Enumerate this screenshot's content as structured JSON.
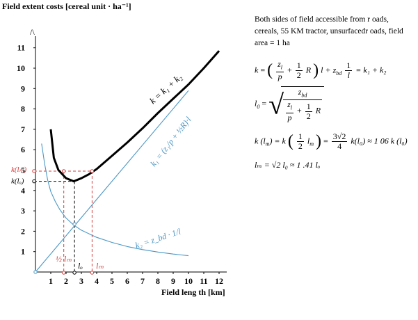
{
  "chart_data": {
    "type": "line",
    "title": "",
    "ylabel": "Field extent costs [cereal unit · ha⁻¹]",
    "xlabel": "Field leng th [km]",
    "xlim": [
      0,
      12.5
    ],
    "ylim": [
      0,
      11.5
    ],
    "x_ticks": [
      "1",
      "2",
      "3",
      "4",
      "5",
      "6",
      "7",
      "8",
      "9",
      "10",
      "11",
      "12"
    ],
    "y_ticks": [
      "1",
      "2",
      "3",
      "4",
      "5",
      "6",
      "7",
      "8",
      "9",
      "10",
      "11"
    ],
    "y_axis_arrow": "/\\",
    "series": [
      {
        "name": "k = k1 + k2",
        "color": "#000000",
        "points": [
          [
            1.0,
            7.0
          ],
          [
            1.2,
            5.6
          ],
          [
            1.5,
            5.0
          ],
          [
            2.0,
            4.6
          ],
          [
            2.5,
            4.45
          ],
          [
            3.0,
            4.6
          ],
          [
            3.5,
            4.8
          ],
          [
            4.0,
            5.05
          ],
          [
            5.0,
            5.7
          ],
          [
            6.0,
            6.35
          ],
          [
            7.0,
            7.05
          ],
          [
            8.0,
            7.8
          ],
          [
            9.0,
            8.5
          ],
          [
            10.0,
            9.2
          ],
          [
            11.0,
            10.0
          ],
          [
            12.0,
            10.85
          ]
        ]
      },
      {
        "name": "k1",
        "color": "#4a96c4",
        "points": [
          [
            0,
            0
          ],
          [
            10.0,
            8.9
          ]
        ]
      },
      {
        "name": "k2",
        "color": "#4a96c4",
        "points": [
          [
            0.4,
            6.3
          ],
          [
            0.6,
            5.3
          ],
          [
            0.8,
            4.5
          ],
          [
            1.0,
            3.95
          ],
          [
            1.3,
            3.45
          ],
          [
            1.6,
            3.05
          ],
          [
            2.0,
            2.65
          ],
          [
            2.5,
            2.3
          ],
          [
            3.0,
            2.05
          ],
          [
            4.0,
            1.7
          ],
          [
            5.0,
            1.45
          ],
          [
            6.0,
            1.25
          ],
          [
            7.0,
            1.1
          ],
          [
            8.0,
            0.98
          ],
          [
            9.0,
            0.88
          ],
          [
            10.0,
            0.8
          ]
        ]
      }
    ],
    "markers": {
      "y_k_lm": 4.95,
      "y_k_lo": 4.45,
      "x_lm_low": 1.85,
      "x_lo": 2.55,
      "x_lm_high": 3.7
    },
    "annotations": {
      "k_curve": "k = k₁ + k₂",
      "k1_curve": "k₁ = (z₁/p + ½R)·l",
      "k2_curve": "k₂ = z_bd · 1/l",
      "half_lm": "½ lₘ",
      "lo": "lₒ",
      "lm": "lₘ",
      "k_lm": "k(lₘ)",
      "k_lo": "k(lₒ)"
    }
  },
  "side_panel": {
    "note": "Both sides of field accessible from r oads, cereals, 55 KM tractor, unsurfacedr oads, field area = 1 ha",
    "f1_k": "k",
    "f1_eq": "=",
    "f1_z": "z",
    "f1_sub_l": "l",
    "f1_p": "p",
    "f1_1": "1",
    "f1_2": "2",
    "f1_R": "R",
    "f1_l": "l",
    "f1_plus_z": "+ z",
    "f1_bd": "bd",
    "f1_one": "1",
    "f1_lden": "l",
    "f1_tail": "= k₁ + k₂",
    "f2_lo": "l",
    "f2_o": "0",
    "f2_eq": "=",
    "f2_zbd": "z",
    "f2_bd": "bd",
    "f2_z": "z",
    "f2_l": "l",
    "f2_p": "p",
    "f2_plus": "+",
    "f2_1": "1",
    "f2_2": "2",
    "f2_R": "R",
    "f3_left": "k (l",
    "f3_m": "m",
    "f3_mid": ") = k",
    "f3_1": "1",
    "f3_2": "2",
    "f3_lm": "l",
    "f3_m2": "m",
    "f3_eq": "=",
    "f3_num": "3√2",
    "f3_den": "4",
    "f3_tail": "k(l₀) ≈ 1 06 k (l₀)",
    "f4": "lₘ = √2 l₀ ≈ 1 .41 lₒ"
  }
}
